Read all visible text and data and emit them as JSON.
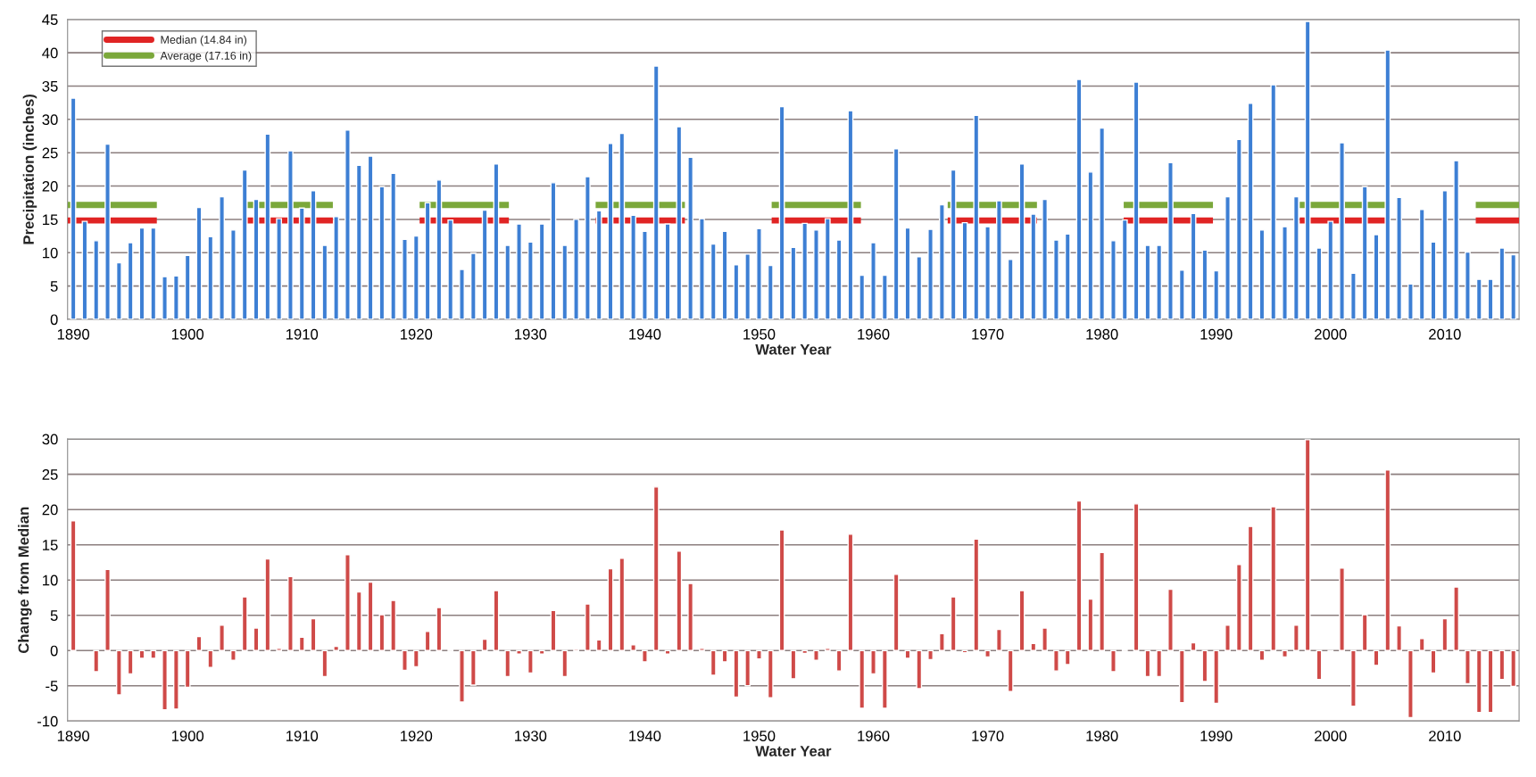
{
  "chart_data": [
    {
      "type": "bar",
      "xlabel": "Water Year",
      "ylabel": "Precipitation (inches)",
      "x": [
        1890,
        1891,
        1892,
        1893,
        1894,
        1895,
        1896,
        1897,
        1898,
        1899,
        1900,
        1901,
        1902,
        1903,
        1904,
        1905,
        1906,
        1907,
        1908,
        1909,
        1910,
        1911,
        1912,
        1913,
        1914,
        1915,
        1916,
        1917,
        1918,
        1919,
        1920,
        1921,
        1922,
        1923,
        1924,
        1925,
        1926,
        1927,
        1928,
        1929,
        1930,
        1931,
        1932,
        1933,
        1934,
        1935,
        1936,
        1937,
        1938,
        1939,
        1940,
        1941,
        1942,
        1943,
        1944,
        1945,
        1946,
        1947,
        1948,
        1949,
        1950,
        1951,
        1952,
        1953,
        1954,
        1955,
        1956,
        1957,
        1958,
        1959,
        1960,
        1961,
        1962,
        1963,
        1964,
        1965,
        1966,
        1967,
        1968,
        1969,
        1970,
        1971,
        1972,
        1973,
        1974,
        1975,
        1976,
        1977,
        1978,
        1979,
        1980,
        1981,
        1982,
        1983,
        1984,
        1985,
        1986,
        1987,
        1988,
        1989,
        1990,
        1991,
        1992,
        1993,
        1994,
        1995,
        1996,
        1997,
        1998,
        1999,
        2000,
        2001,
        2002,
        2003,
        2004,
        2005,
        2006,
        2007,
        2008,
        2009,
        2010,
        2011,
        2012,
        2013,
        2014,
        2015,
        2016
      ],
      "series": [
        {
          "color": "#3d7fd4",
          "values": [
            33.2,
            14.7,
            11.8,
            26.3,
            8.5,
            11.5,
            13.7,
            13.7,
            6.4,
            6.5,
            9.6,
            16.8,
            12.4,
            18.4,
            13.4,
            22.4,
            18.0,
            27.8,
            15.1,
            25.3,
            16.7,
            19.3,
            11.1,
            15.4,
            28.4,
            23.1,
            24.5,
            19.9,
            21.9,
            12.0,
            12.5,
            17.5,
            20.9,
            14.9,
            7.5,
            9.9,
            16.4,
            23.3,
            11.1,
            14.3,
            11.6,
            14.3,
            20.5,
            11.1,
            15.0,
            21.4,
            16.3,
            26.4,
            27.9,
            15.6,
            13.2,
            38.0,
            14.3,
            28.9,
            24.3,
            15.1,
            11.3,
            13.2,
            8.2,
            9.8,
            13.6,
            8.1,
            31.9,
            10.8,
            14.4,
            13.4,
            15.1,
            11.9,
            31.3,
            6.6,
            11.5,
            6.6,
            25.6,
            13.7,
            9.4,
            13.5,
            17.2,
            22.4,
            14.5,
            30.6,
            13.9,
            17.8,
            9.0,
            23.3,
            15.8,
            18.0,
            11.9,
            12.8,
            36.0,
            22.1,
            28.7,
            11.8,
            14.9,
            35.6,
            11.1,
            11.1,
            23.5,
            7.4,
            15.9,
            10.4,
            7.3,
            18.4,
            27.0,
            32.4,
            13.4,
            35.2,
            13.9,
            18.4,
            44.7,
            10.7,
            14.7,
            26.5,
            6.9,
            19.9,
            12.7,
            40.4,
            18.3,
            5.3,
            16.5,
            11.6,
            19.3,
            23.8,
            10.1,
            6.0,
            6.0,
            10.7,
            9.7
          ]
        }
      ],
      "xlim": [
        1889.5,
        2016.5
      ],
      "xticks": [
        1890,
        1900,
        1910,
        1920,
        1930,
        1940,
        1950,
        1960,
        1970,
        1980,
        1990,
        2000,
        2010
      ],
      "ylim": [
        0,
        45
      ],
      "yticks": [
        0,
        5,
        10,
        15,
        20,
        25,
        30,
        35,
        40,
        45
      ],
      "ref_lines": [
        {
          "axis": "y",
          "value": 14.84,
          "label": "Median (14.84 in)",
          "color": "#e02424",
          "line_style": "dashed"
        },
        {
          "axis": "y",
          "value": 17.16,
          "label": "Average (17.16 in)",
          "color": "#7ba83b",
          "line_style": "dashed"
        }
      ],
      "grid": "y",
      "legend": "top left"
    },
    {
      "type": "bar",
      "xlabel": "Water Year",
      "ylabel": "Change from Median",
      "x": [
        1890,
        1891,
        1892,
        1893,
        1894,
        1895,
        1896,
        1897,
        1898,
        1899,
        1900,
        1901,
        1902,
        1903,
        1904,
        1905,
        1906,
        1907,
        1908,
        1909,
        1910,
        1911,
        1912,
        1913,
        1914,
        1915,
        1916,
        1917,
        1918,
        1919,
        1920,
        1921,
        1922,
        1923,
        1924,
        1925,
        1926,
        1927,
        1928,
        1929,
        1930,
        1931,
        1932,
        1933,
        1934,
        1935,
        1936,
        1937,
        1938,
        1939,
        1940,
        1941,
        1942,
        1943,
        1944,
        1945,
        1946,
        1947,
        1948,
        1949,
        1950,
        1951,
        1952,
        1953,
        1954,
        1955,
        1956,
        1957,
        1958,
        1959,
        1960,
        1961,
        1962,
        1963,
        1964,
        1965,
        1966,
        1967,
        1968,
        1969,
        1970,
        1971,
        1972,
        1973,
        1974,
        1975,
        1976,
        1977,
        1978,
        1979,
        1980,
        1981,
        1982,
        1983,
        1984,
        1985,
        1986,
        1987,
        1988,
        1989,
        1990,
        1991,
        1992,
        1993,
        1994,
        1995,
        1996,
        1997,
        1998,
        1999,
        2000,
        2001,
        2002,
        2003,
        2004,
        2005,
        2006,
        2007,
        2008,
        2009,
        2010,
        2011,
        2012,
        2013,
        2014,
        2015,
        2016
      ],
      "series": [
        {
          "color": "#cf4a48",
          "values": [
            18.4,
            null,
            -3.0,
            11.5,
            -6.3,
            -3.3,
            -1.1,
            -1.1,
            -8.4,
            -8.3,
            -5.2,
            2.0,
            -2.4,
            3.6,
            -1.4,
            7.6,
            3.2,
            13.0,
            0.3,
            10.5,
            1.9,
            4.5,
            -3.7,
            0.6,
            13.6,
            8.3,
            9.7,
            5.1,
            7.1,
            -2.8,
            -2.3,
            2.7,
            6.1,
            0.1,
            -7.3,
            -4.9,
            1.6,
            8.5,
            -3.7,
            -0.5,
            -3.2,
            -0.5,
            5.7,
            -3.7,
            0.2,
            6.6,
            1.5,
            11.6,
            13.1,
            0.8,
            -1.6,
            23.2,
            -0.5,
            14.1,
            9.5,
            0.3,
            -3.5,
            -1.6,
            -6.6,
            -5.0,
            -1.2,
            -6.7,
            17.1,
            -4.0,
            -0.4,
            -1.4,
            0.3,
            -2.9,
            16.5,
            -8.2,
            -3.3,
            -8.2,
            10.8,
            -1.1,
            -5.4,
            -1.3,
            2.4,
            7.6,
            -0.3,
            15.8,
            -0.9,
            3.0,
            -5.8,
            8.5,
            1.0,
            3.2,
            -2.9,
            -2.0,
            21.2,
            7.3,
            13.9,
            -3.0,
            0.1,
            20.8,
            -3.7,
            -3.7,
            8.7,
            -7.4,
            1.1,
            -4.4,
            -7.5,
            3.6,
            12.2,
            17.6,
            -1.4,
            20.4,
            -0.9,
            3.6,
            29.9,
            -4.1,
            -0.1,
            11.7,
            -7.9,
            5.1,
            -2.1,
            25.6,
            3.5,
            -9.5,
            1.7,
            -3.2,
            4.5,
            9.0,
            -4.7,
            -8.8,
            -8.8,
            -4.1,
            -5.1
          ]
        }
      ],
      "xlim": [
        1889.5,
        2016.5
      ],
      "xticks": [
        1890,
        1900,
        1910,
        1920,
        1930,
        1940,
        1950,
        1960,
        1970,
        1980,
        1990,
        2000,
        2010
      ],
      "ylim": [
        -10,
        30
      ],
      "yticks": [
        -10,
        -5,
        0,
        5,
        10,
        15,
        20,
        25,
        30
      ],
      "grid": "y"
    }
  ]
}
